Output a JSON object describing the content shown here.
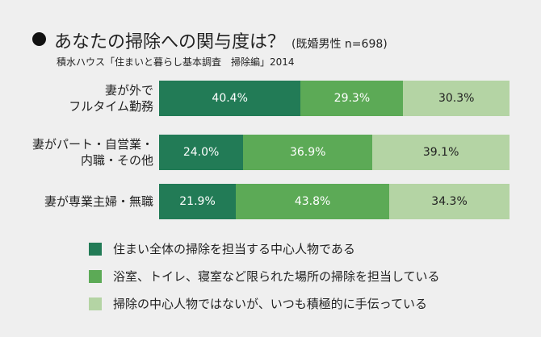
{
  "chart_data": {
    "type": "bar",
    "orientation": "horizontal",
    "stacked": true,
    "percent": true,
    "title": "あなたの掃除への関与度は？",
    "subtitle": "(既婚男性 n=698)",
    "source": "積水ハウス「住まいと暮らし基本調査　掃除編」2014",
    "categories": [
      "妻が外で\nフルタイム勤務",
      "妻がパート・自営業・\n内職・その他",
      "妻が専業主婦・無職"
    ],
    "series": [
      {
        "name": "住まい全体の掃除を担当する中心人物である",
        "color": "#227b56",
        "text_color": "#ffffff",
        "values": [
          40.4,
          24.0,
          21.9
        ]
      },
      {
        "name": "浴室、トイレ、寝室など限られた場所の掃除を担当している",
        "color": "#5caa56",
        "text_color": "#ffffff",
        "values": [
          29.3,
          36.9,
          43.8
        ]
      },
      {
        "name": "掃除の中心人物ではないが、いつも積極的に手伝っている",
        "color": "#b4d4a4",
        "text_color": "#222222",
        "values": [
          30.3,
          39.1,
          34.3
        ]
      }
    ],
    "labels": [
      [
        "40.4%",
        "29.3%",
        "30.3%"
      ],
      [
        "24.0%",
        "36.9%",
        "39.1%"
      ],
      [
        "21.9%",
        "43.8%",
        "34.3%"
      ]
    ],
    "xlim": [
      0,
      100
    ],
    "grid": false,
    "legend_position": "bottom"
  }
}
